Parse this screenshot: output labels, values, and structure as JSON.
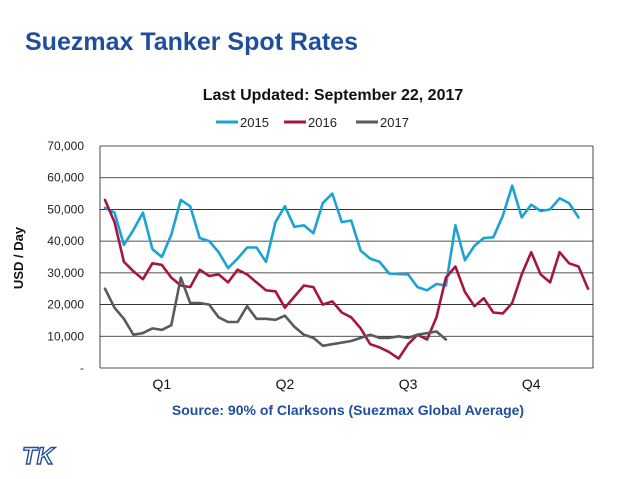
{
  "slide": {
    "title": "Suezmax Tanker Spot Rates",
    "logo_text": "TK"
  },
  "chart_data": {
    "type": "line",
    "title": "Last Updated: September 22, 2017",
    "ylabel": "USD / Day",
    "xlabel": "Source: 90% of Clarksons (Suezmax Global Average)",
    "ylim": [
      0,
      70000
    ],
    "y_ticks": [
      {
        "value": 0,
        "label": "-"
      },
      {
        "value": 10000,
        "label": "10,000"
      },
      {
        "value": 20000,
        "label": "20,000"
      },
      {
        "value": 30000,
        "label": "30,000"
      },
      {
        "value": 40000,
        "label": "40,000"
      },
      {
        "value": 50000,
        "label": "50,000"
      },
      {
        "value": 60000,
        "label": "60,000"
      },
      {
        "value": 70000,
        "label": "70,000"
      }
    ],
    "grid": true,
    "legend_position": "top-center",
    "x_range": [
      1,
      52
    ],
    "x_unit": "week",
    "categories": [
      {
        "label": "Q1",
        "x": 7
      },
      {
        "label": "Q2",
        "x": 20
      },
      {
        "label": "Q3",
        "x": 33
      },
      {
        "label": "Q4",
        "x": 46
      }
    ],
    "series": [
      {
        "name": "2015",
        "color": "#1aa3d3",
        "x": [
          1,
          2,
          3,
          4,
          5,
          6,
          7,
          8,
          9,
          10,
          11,
          12,
          13,
          14,
          15,
          16,
          17,
          18,
          19,
          20,
          21,
          22,
          23,
          24,
          25,
          26,
          27,
          28,
          29,
          30,
          31,
          32,
          33,
          34,
          35,
          36,
          37,
          38,
          39,
          40,
          41,
          42,
          43,
          44,
          45,
          46,
          47,
          48,
          49,
          50,
          51,
          52
        ],
        "values": [
          50500,
          49000,
          38800,
          43500,
          49000,
          37500,
          35000,
          42000,
          53000,
          51000,
          41000,
          40000,
          36500,
          31500,
          34500,
          38000,
          38000,
          33500,
          46000,
          51000,
          44500,
          45000,
          42500,
          52000,
          55000,
          46000,
          46500,
          37000,
          34500,
          33500,
          29800,
          29600,
          29500,
          25500,
          24500,
          26500,
          26000,
          45000,
          34000,
          38500,
          41000,
          41200,
          48000,
          57500,
          47500,
          51500,
          49500,
          50000,
          53500,
          52000,
          47500,
          null
        ]
      },
      {
        "name": "2016",
        "color": "#a6173f",
        "x": [
          1,
          2,
          3,
          4,
          5,
          6,
          7,
          8,
          9,
          10,
          11,
          12,
          13,
          14,
          15,
          16,
          17,
          18,
          19,
          20,
          21,
          22,
          23,
          24,
          25,
          26,
          27,
          28,
          29,
          30,
          31,
          32,
          33,
          34,
          35,
          36,
          37,
          38,
          39,
          40,
          41,
          42,
          43,
          44,
          45,
          46,
          47,
          48,
          49,
          50,
          51,
          52
        ],
        "values": [
          53000,
          46000,
          33500,
          30500,
          28000,
          33000,
          32500,
          28500,
          26000,
          25500,
          31000,
          29000,
          29500,
          27000,
          31000,
          29500,
          27000,
          24500,
          24200,
          19000,
          22500,
          26000,
          25500,
          20000,
          21000,
          17500,
          16000,
          12500,
          7500,
          6500,
          5000,
          3000,
          7500,
          10500,
          9000,
          16000,
          28500,
          32000,
          24000,
          19500,
          22000,
          17500,
          17200,
          20500,
          29500,
          36500,
          29500,
          27000,
          36500,
          33000,
          32000,
          25000
        ]
      },
      {
        "name": "2017",
        "color": "#555b60",
        "x": [
          1,
          2,
          3,
          4,
          5,
          6,
          7,
          8,
          9,
          10,
          11,
          12,
          13,
          14,
          15,
          16,
          17,
          18,
          19,
          20,
          21,
          22,
          23,
          24,
          25,
          26,
          27,
          28,
          29,
          30,
          31,
          32,
          33,
          34,
          35,
          36,
          37
        ],
        "values": [
          25000,
          19000,
          15500,
          10500,
          11000,
          12500,
          12000,
          13500,
          28500,
          20500,
          20500,
          20000,
          16000,
          14500,
          14500,
          19500,
          15500,
          15500,
          15200,
          16500,
          13000,
          10500,
          9500,
          7000,
          7500,
          8000,
          8500,
          9500,
          10500,
          9500,
          9500,
          10000,
          9500,
          10500,
          11000,
          11500,
          9000
        ]
      }
    ]
  }
}
